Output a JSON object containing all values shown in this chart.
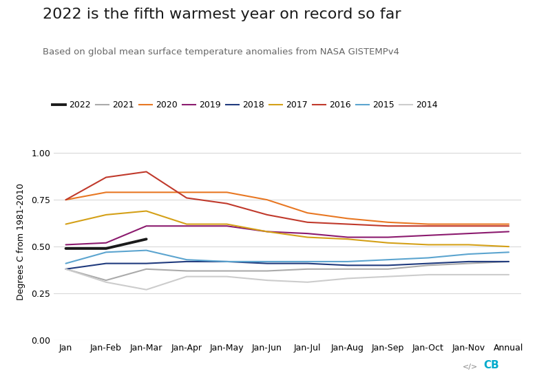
{
  "title": "2022 is the fifth warmest year on record so far",
  "subtitle": "Based on global mean surface temperature anomalies from NASA GISTEMPv4",
  "ylabel": "Degrees C from 1981-2010",
  "x_labels": [
    "Jan",
    "Jan-Feb",
    "Jan-Mar",
    "Jan-Apr",
    "Jan-May",
    "Jan-Jun",
    "Jan-Jul",
    "Jan-Aug",
    "Jan-Sep",
    "Jan-Oct",
    "Jan-Nov",
    "Annual"
  ],
  "ylim": [
    0.0,
    1.05
  ],
  "yticks": [
    0.0,
    0.25,
    0.5,
    0.75,
    1.0
  ],
  "series": {
    "2022": {
      "color": "#1a1a1a",
      "linewidth": 2.8,
      "data": [
        0.49,
        0.49,
        0.54,
        null,
        null,
        null,
        null,
        null,
        null,
        null,
        null,
        null
      ]
    },
    "2021": {
      "color": "#aaaaaa",
      "linewidth": 1.5,
      "data": [
        0.38,
        0.32,
        0.38,
        0.37,
        0.37,
        0.37,
        0.38,
        0.38,
        0.38,
        0.4,
        0.41,
        0.42
      ]
    },
    "2020": {
      "color": "#e87722",
      "linewidth": 1.5,
      "data": [
        0.75,
        0.79,
        0.79,
        0.79,
        0.79,
        0.75,
        0.68,
        0.65,
        0.63,
        0.62,
        0.62,
        0.62
      ]
    },
    "2019": {
      "color": "#8b1a6e",
      "linewidth": 1.5,
      "data": [
        0.51,
        0.52,
        0.61,
        0.61,
        0.61,
        0.58,
        0.57,
        0.55,
        0.55,
        0.56,
        0.57,
        0.58
      ]
    },
    "2018": {
      "color": "#1f3a7d",
      "linewidth": 1.5,
      "data": [
        0.38,
        0.41,
        0.41,
        0.42,
        0.42,
        0.41,
        0.41,
        0.4,
        0.4,
        0.41,
        0.42,
        0.42
      ]
    },
    "2017": {
      "color": "#d4a017",
      "linewidth": 1.5,
      "data": [
        0.62,
        0.67,
        0.69,
        0.62,
        0.62,
        0.58,
        0.55,
        0.54,
        0.52,
        0.51,
        0.51,
        0.5
      ]
    },
    "2016": {
      "color": "#c0392b",
      "linewidth": 1.5,
      "data": [
        0.75,
        0.87,
        0.9,
        0.76,
        0.73,
        0.67,
        0.63,
        0.62,
        0.61,
        0.61,
        0.61,
        0.61
      ]
    },
    "2015": {
      "color": "#5ba4cf",
      "linewidth": 1.5,
      "data": [
        0.41,
        0.47,
        0.48,
        0.43,
        0.42,
        0.42,
        0.42,
        0.42,
        0.43,
        0.44,
        0.46,
        0.47
      ]
    },
    "2014": {
      "color": "#cccccc",
      "linewidth": 1.5,
      "data": [
        0.38,
        0.31,
        0.27,
        0.34,
        0.34,
        0.32,
        0.31,
        0.33,
        0.34,
        0.35,
        0.35,
        0.35
      ]
    }
  },
  "legend_order": [
    "2022",
    "2021",
    "2020",
    "2019",
    "2018",
    "2017",
    "2016",
    "2015",
    "2014"
  ],
  "background_color": "#ffffff",
  "grid_color": "#d9d9d9",
  "title_fontsize": 16,
  "subtitle_fontsize": 9.5,
  "tick_fontsize": 9,
  "legend_fontsize": 9
}
